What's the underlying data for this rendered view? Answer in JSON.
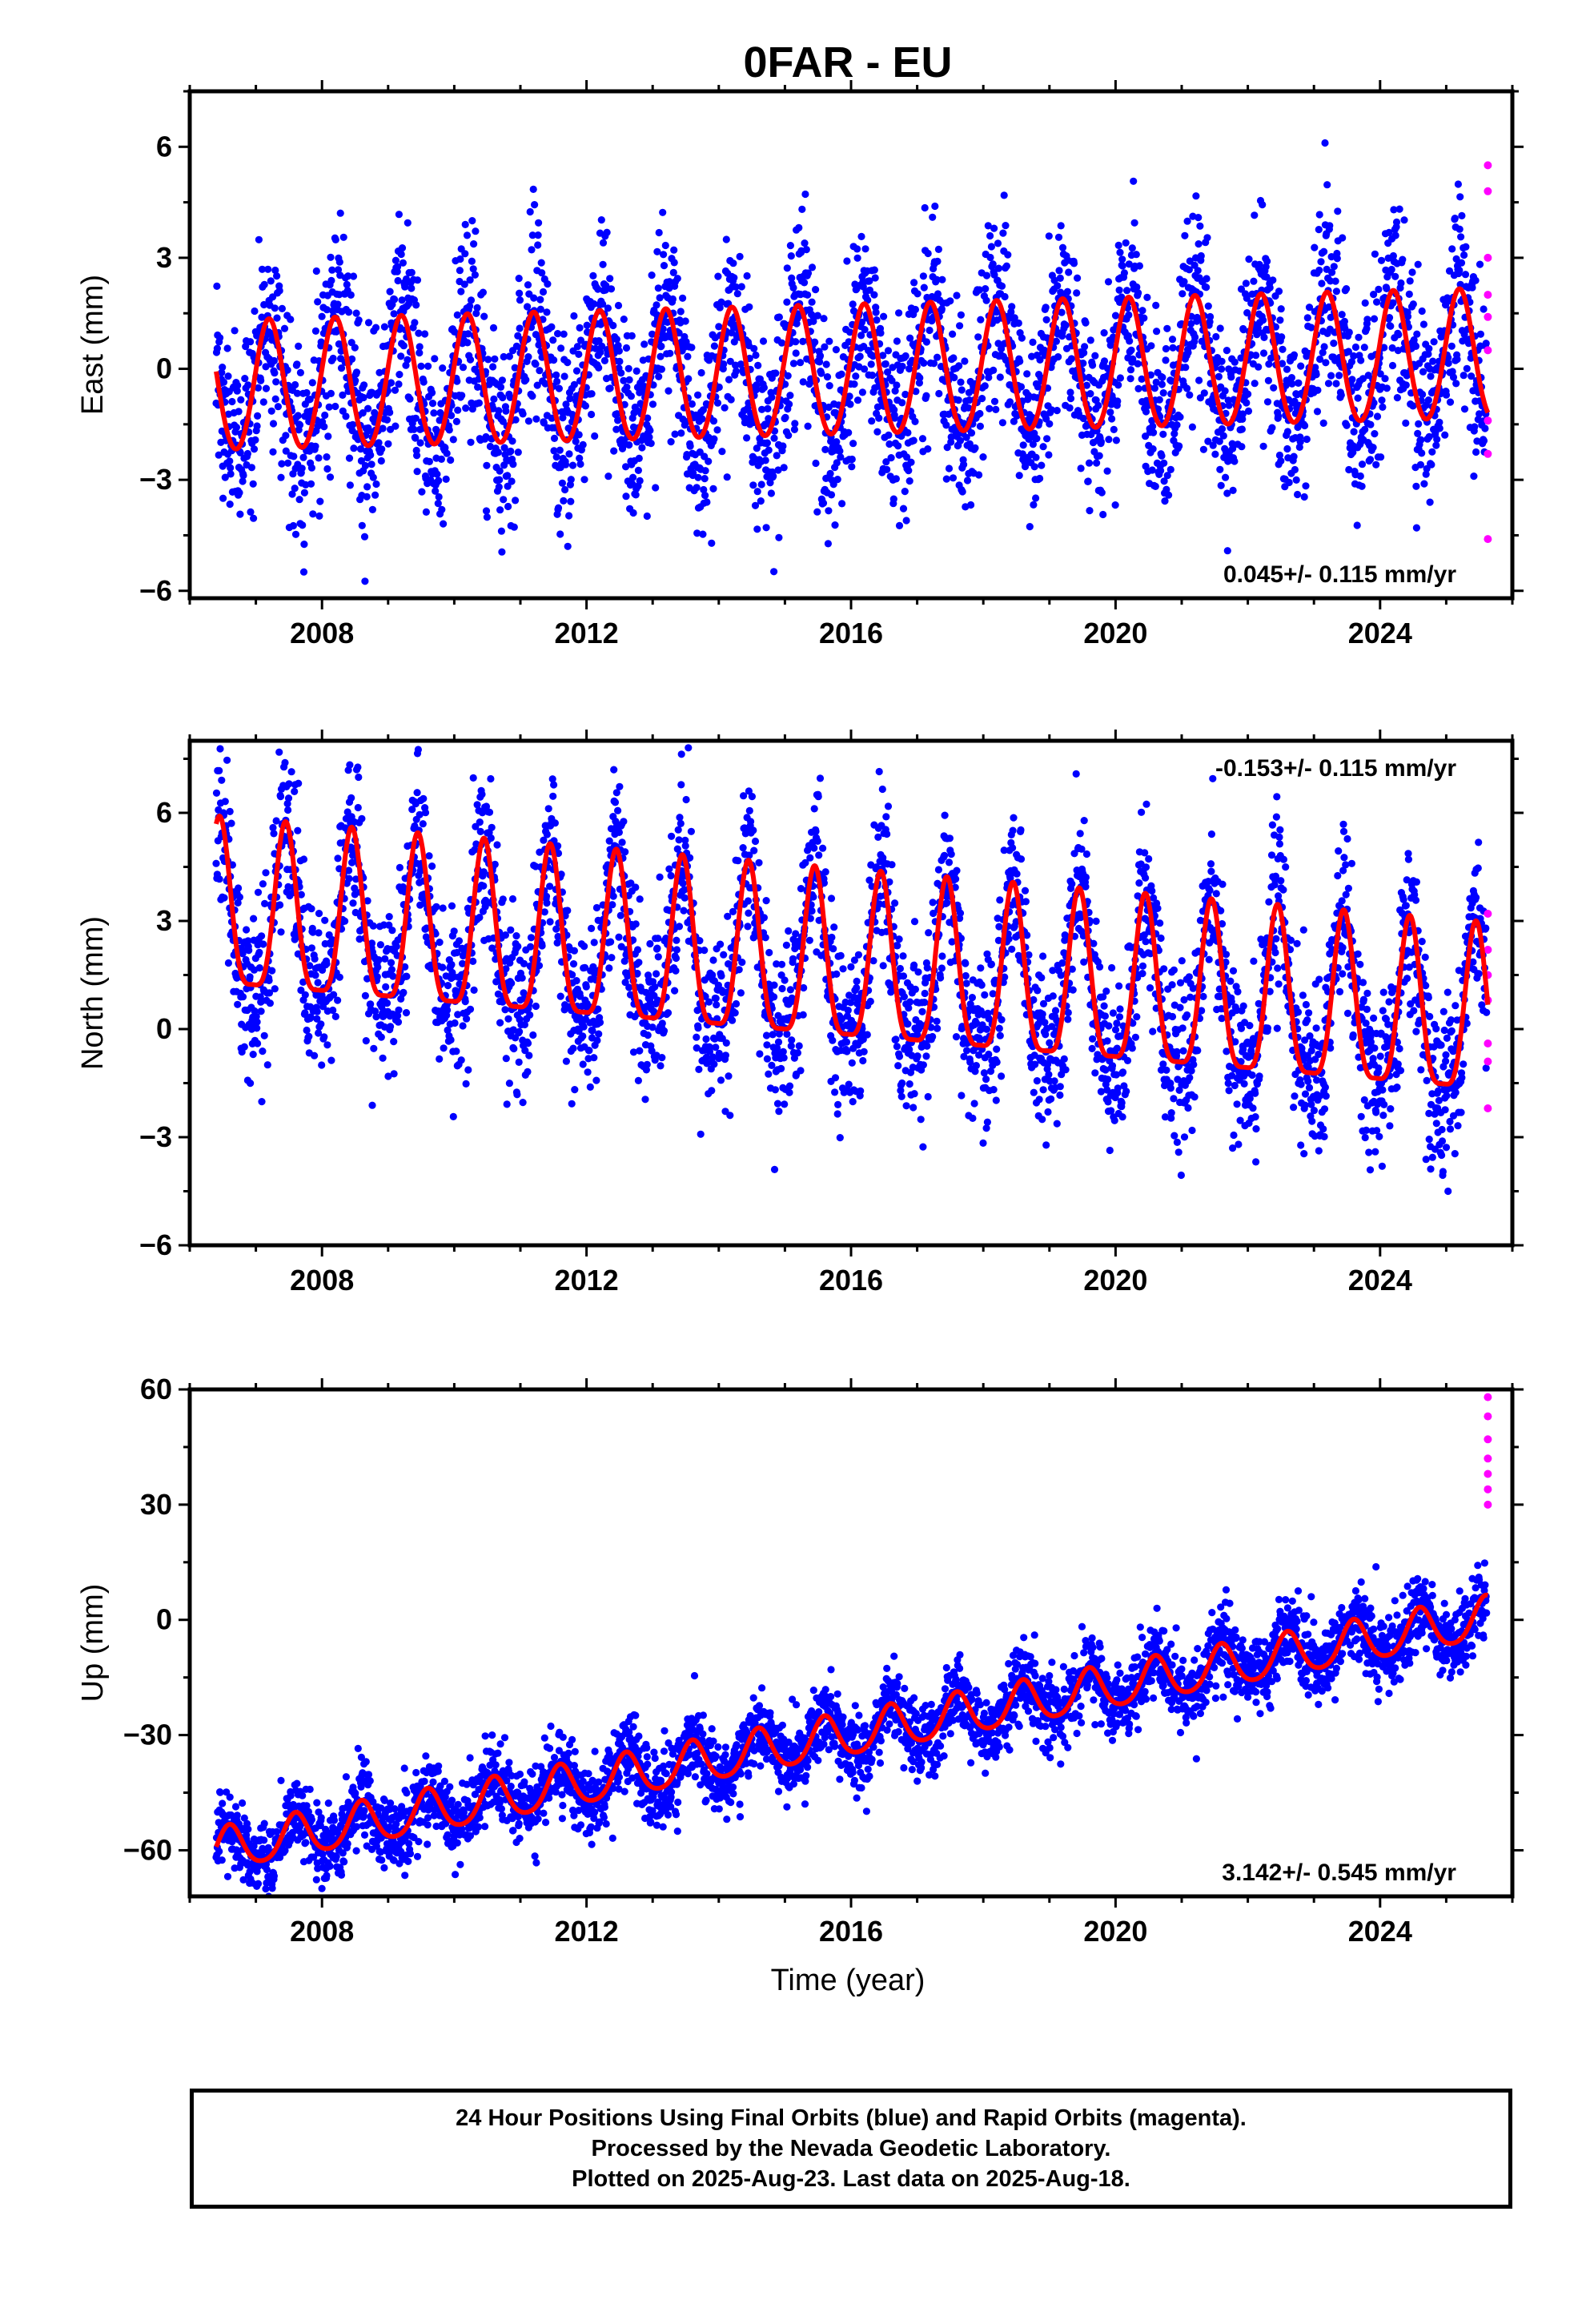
{
  "title": "0FAR - EU",
  "xlabel": "Time (year)",
  "x_range": [
    2006.0,
    2026.0
  ],
  "x_ticks": [
    2008,
    2012,
    2016,
    2020,
    2024
  ],
  "colors": {
    "final_orbits": "#0000ff",
    "rapid_orbits": "#ff00ff",
    "model_fit": "#ff0000"
  },
  "caption": {
    "line1": "24 Hour Positions Using Final Orbits (blue) and Rapid Orbits (magenta).",
    "line2": "Processed by the Nevada Geodetic Laboratory.",
    "line3": "Plotted on 2025-Aug-23. Last data on 2025-Aug-18."
  },
  "chart_data": [
    {
      "type": "scatter",
      "component": "East",
      "ylabel": "East (mm)",
      "ylim": [
        -6.2,
        7.5
      ],
      "y_ticks": [
        -6,
        -3,
        0,
        3,
        6
      ],
      "velocity_label": "0.045+/- 0.115 mm/yr",
      "velocity_label_position": "bottom-right",
      "data_start": 2006.4,
      "data_end": 2025.63,
      "model": {
        "offset": -0.1,
        "trend_mm_per_yr": 0.045,
        "annual_amplitude": 1.75,
        "annual_phase_peak_year_fraction": 0.2,
        "semiannual_amplitude": 0.1
      },
      "scatter_std_mm": 1.3,
      "rapid_points_y": [
        5.5,
        4.8,
        3.0,
        2.0,
        1.4,
        0.5,
        -1.4,
        -2.3,
        -4.6
      ]
    },
    {
      "type": "scatter",
      "component": "North",
      "ylabel": "North (mm)",
      "ylim": [
        -6.0,
        8.0
      ],
      "y_ticks": [
        -6,
        -3,
        0,
        3,
        6
      ],
      "velocity_label": "-0.153+/- 0.115 mm/yr",
      "velocity_label_position": "top-right",
      "data_start": 2006.4,
      "data_end": 2025.63,
      "model": {
        "offset": 1.55,
        "trend_mm_per_yr": -0.153,
        "annual_amplitude": 2.3,
        "annual_phase_peak_year_fraction": 0.45,
        "semiannual_amplitude": 0.6
      },
      "scatter_std_mm": 1.15,
      "rapid_points_y": [
        3.2,
        2.2,
        1.5,
        0.8,
        -0.4,
        -0.9,
        -2.2
      ]
    },
    {
      "type": "scatter",
      "component": "Up",
      "ylabel": "Up (mm)",
      "ylim": [
        -72,
        60
      ],
      "y_ticks": [
        -60,
        -30,
        0,
        30,
        60
      ],
      "velocity_label": "3.142+/- 0.545 mm/yr",
      "velocity_label_position": "bottom-right",
      "data_start": 2006.4,
      "data_end": 2025.63,
      "model": {
        "offset": -30.0,
        "trend_mm_per_yr": 3.142,
        "annual_amplitude": 5.5,
        "annual_phase_peak_year_fraction": 0.6,
        "semiannual_amplitude": 0.8
      },
      "scatter_std_mm": 5.0,
      "rapid_points_y": [
        58,
        53,
        47,
        42,
        38,
        34,
        30
      ]
    }
  ]
}
